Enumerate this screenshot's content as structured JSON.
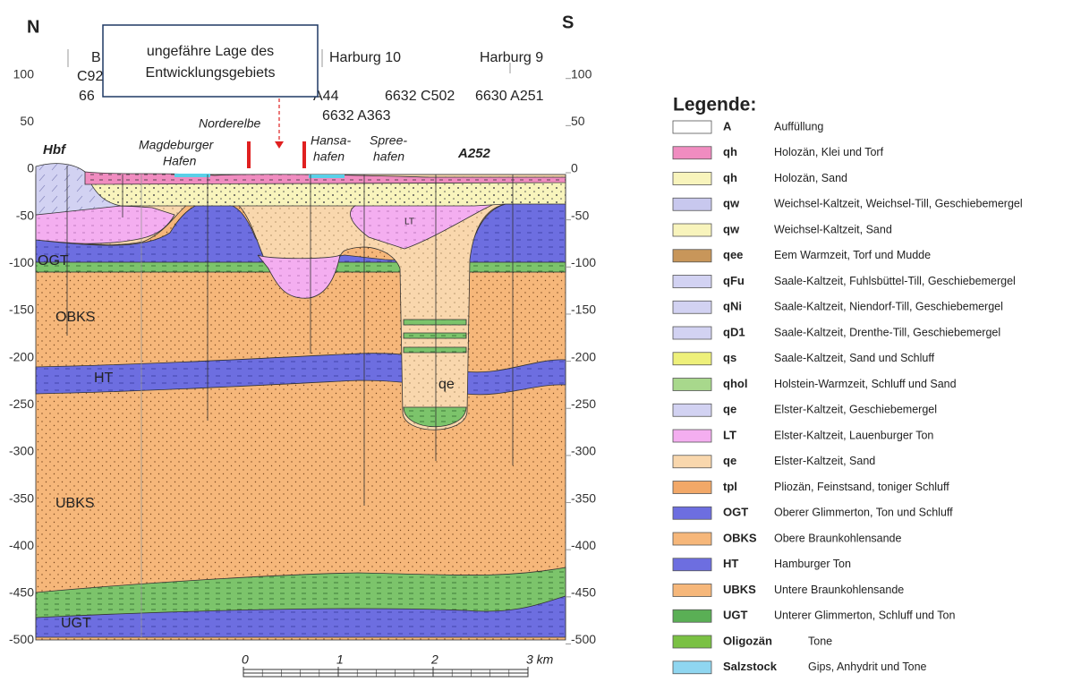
{
  "compass": {
    "north": "N",
    "south": "S"
  },
  "callout": {
    "lines": [
      "ungefähre Lage des",
      "Entwicklungsgebiets"
    ]
  },
  "boreholes": [
    "B",
    "C92",
    "66",
    "A44",
    "Harburg 10",
    "Harburg 9",
    "6632 C502",
    "6630 A251",
    "6632 A363"
  ],
  "places": {
    "hbf": "Hbf",
    "magdeburger": [
      "Magdeburger",
      "Hafen"
    ],
    "norderelbe": "Norderelbe",
    "hansa": [
      "Hansa-",
      "hafen"
    ],
    "spree": [
      "Spree-",
      "hafen"
    ],
    "a252": "A252"
  },
  "units": [
    "OGT",
    "OBKS",
    "HT",
    "UBKS",
    "UGT",
    "LT",
    "qe"
  ],
  "depth_axis": {
    "ticks": [
      100,
      50,
      0,
      -50,
      -100,
      -150,
      -200,
      -250,
      -300,
      -350,
      -400,
      -450,
      -500
    ]
  },
  "scale_bar": {
    "labels": [
      "0",
      "1",
      "2",
      "3 km"
    ]
  },
  "legend": {
    "title": "Legende:",
    "items": [
      {
        "code": "A",
        "description": "Auffüllung",
        "color": "#ffffff"
      },
      {
        "code": "qh",
        "description": "Holozän, Klei und Torf",
        "color": "#f08cc0"
      },
      {
        "code": "qh",
        "description": "Holozän, Sand",
        "color": "#f8f4bc"
      },
      {
        "code": "qw",
        "description": "Weichsel-Kaltzeit, Weichsel-Till, Geschiebemergel",
        "color": "#c8c8ee"
      },
      {
        "code": "qw",
        "description": "Weichsel-Kaltzeit, Sand",
        "color": "#f8f4bc"
      },
      {
        "code": "qee",
        "description": "Eem Warmzeit, Torf und Mudde",
        "color": "#c8965a"
      },
      {
        "code": "qFu",
        "description": "Saale-Kaltzeit, Fuhlsbüttel-Till, Geschiebemergel",
        "color": "#d2d2f2"
      },
      {
        "code": "qNi",
        "description": "Saale-Kaltzeit, Niendorf-Till, Geschiebemergel",
        "color": "#d2d2f2"
      },
      {
        "code": "qD1",
        "description": "Saale-Kaltzeit, Drenthe-Till, Geschiebemergel",
        "color": "#d2d2f2"
      },
      {
        "code": "qs",
        "description": "Saale-Kaltzeit, Sand und Schluff",
        "color": "#eef07a"
      },
      {
        "code": "qhol",
        "description": "Holstein-Warmzeit, Schluff und Sand",
        "color": "#a8d88c"
      },
      {
        "code": "qe",
        "description": "Elster-Kaltzeit, Geschiebemergel",
        "color": "#d2d2f2"
      },
      {
        "code": "LT",
        "description": "Elster-Kaltzeit, Lauenburger Ton",
        "color": "#f4aef0"
      },
      {
        "code": "qe",
        "description": "Elster-Kaltzeit, Sand",
        "color": "#f9d7ad"
      },
      {
        "code": "tpl",
        "description": "Pliozän, Feinstsand, toniger Schluff",
        "color": "#f2a868"
      },
      {
        "code": "OGT",
        "description": "Oberer Glimmerton, Ton und Schluff",
        "color": "#6d6ee0"
      },
      {
        "code": "OBKS",
        "description": "Obere Braunkohlensande",
        "color": "#f6b77a"
      },
      {
        "code": "HT",
        "description": "Hamburger Ton",
        "color": "#6d6ee0"
      },
      {
        "code": "UBKS",
        "description": "Untere Braunkohlensande",
        "color": "#f6b77a"
      },
      {
        "code": "UGT",
        "description": "Unterer Glimmerton, Schluff und Ton",
        "color": "#5aaf55"
      },
      {
        "code": "Oligozän",
        "description": "Tone",
        "color": "#7ac143"
      },
      {
        "code": "Salzstock",
        "description": "Gips, Anhydrit und Tone",
        "color": "#8fd6f0"
      }
    ]
  }
}
